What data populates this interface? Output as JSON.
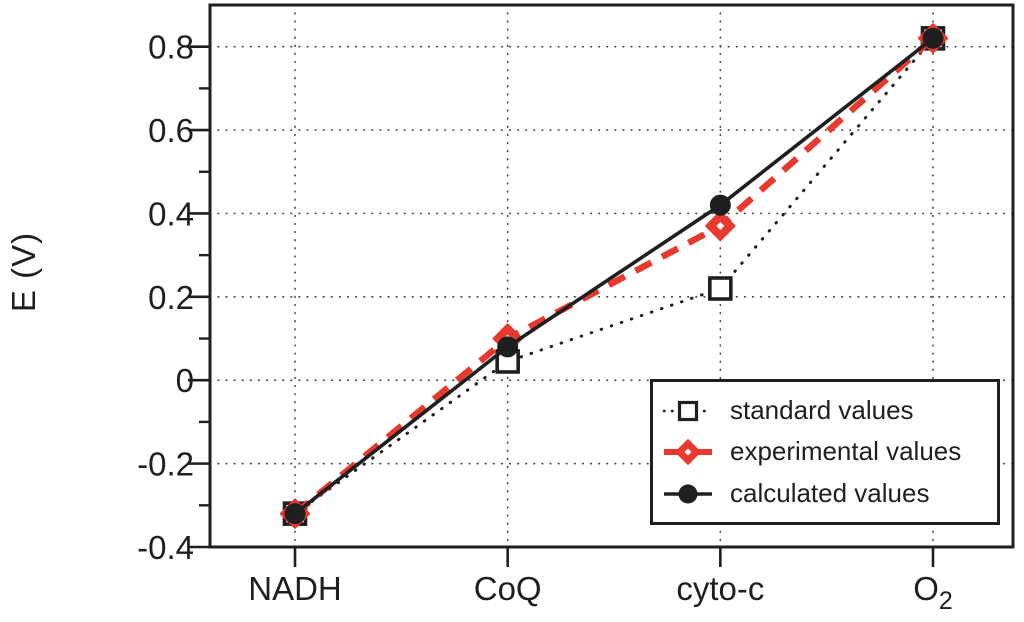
{
  "chart_data": {
    "type": "line",
    "title": "",
    "xlabel": "",
    "ylabel": "E (V)",
    "categories": [
      "NADH",
      "CoQ",
      "cyto-c",
      "O2"
    ],
    "categories_display": [
      {
        "text": "NADH",
        "sub": ""
      },
      {
        "text": "CoQ",
        "sub": ""
      },
      {
        "text": "cyto-c",
        "sub": ""
      },
      {
        "text": "O",
        "sub": "2"
      }
    ],
    "ylim": [
      -0.4,
      0.9
    ],
    "yticks_major": [
      -0.4,
      -0.2,
      0,
      0.2,
      0.4,
      0.6,
      0.8
    ],
    "ytick_labels": [
      "-0.4",
      "-0.2",
      "0",
      "0.2",
      "0.4",
      "0.6",
      "0.8"
    ],
    "yticks_minor": [
      -0.3,
      -0.1,
      0.1,
      0.3,
      0.5,
      0.7
    ],
    "grid": true,
    "legend_position": "lower-right",
    "series": [
      {
        "name": "standard values",
        "values": [
          -0.32,
          0.045,
          0.22,
          0.82
        ],
        "color": "#1f1f1f",
        "line": "dotted",
        "marker": "open-square"
      },
      {
        "name": "experimental values",
        "values": [
          -0.32,
          0.1,
          0.37,
          0.82
        ],
        "color": "#e8392e",
        "line": "dashed",
        "marker": "diamond"
      },
      {
        "name": "calculated values",
        "values": [
          -0.32,
          0.08,
          0.42,
          0.82
        ],
        "color": "#1f1f1f",
        "line": "solid",
        "marker": "filled-circle"
      }
    ]
  },
  "axes": {
    "y_title": "E (V)"
  },
  "legend": {
    "items": [
      {
        "label": "standard values"
      },
      {
        "label": "experimental values"
      },
      {
        "label": "calculated values"
      }
    ]
  },
  "colors": {
    "ink": "#1f1f1f",
    "accent_red": "#e8392e",
    "grid_dots": "#4a4a4a",
    "background": "#ffffff"
  }
}
